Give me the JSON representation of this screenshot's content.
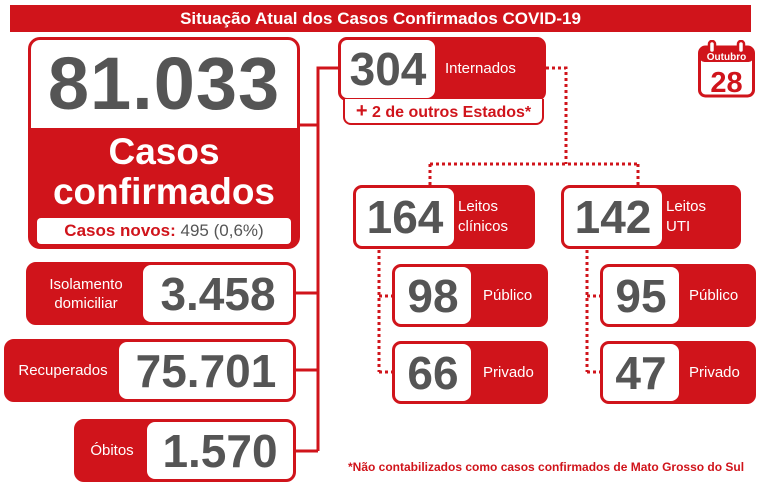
{
  "title": "Situação Atual dos Casos Confirmados COVID-19",
  "casos": {
    "total": "81.033",
    "label_line1": "Casos",
    "label_line2": "confirmados",
    "novos_label": "Casos novos:",
    "novos_value": "495 (0,6%)"
  },
  "isolamento": {
    "label_line1": "Isolamento",
    "label_line2": "domiciliar",
    "value": "3.458"
  },
  "recuperados": {
    "label": "Recuperados",
    "value": "75.701"
  },
  "obitos": {
    "label": "Óbitos",
    "value": "1.570"
  },
  "internados": {
    "value": "304",
    "label": "Internados",
    "outros_plus": "+",
    "outros_text": " 2 de outros Estados*"
  },
  "clinicos": {
    "value": "164",
    "label_line1": "Leitos",
    "label_line2": "clínicos",
    "publico": {
      "value": "98",
      "label": "Público"
    },
    "privado": {
      "value": "66",
      "label": "Privado"
    }
  },
  "uti": {
    "value": "142",
    "label_line1": "Leitos",
    "label_line2": "UTI",
    "publico": {
      "value": "95",
      "label": "Público"
    },
    "privado": {
      "value": "47",
      "label": "Privado"
    }
  },
  "calendar": {
    "month": "Outubro",
    "day": "28"
  },
  "footnote": "*Não contabilizados como casos confirmados de Mato Grosso do Sul",
  "colors": {
    "accent": "#d0141b",
    "number": "#555555"
  }
}
